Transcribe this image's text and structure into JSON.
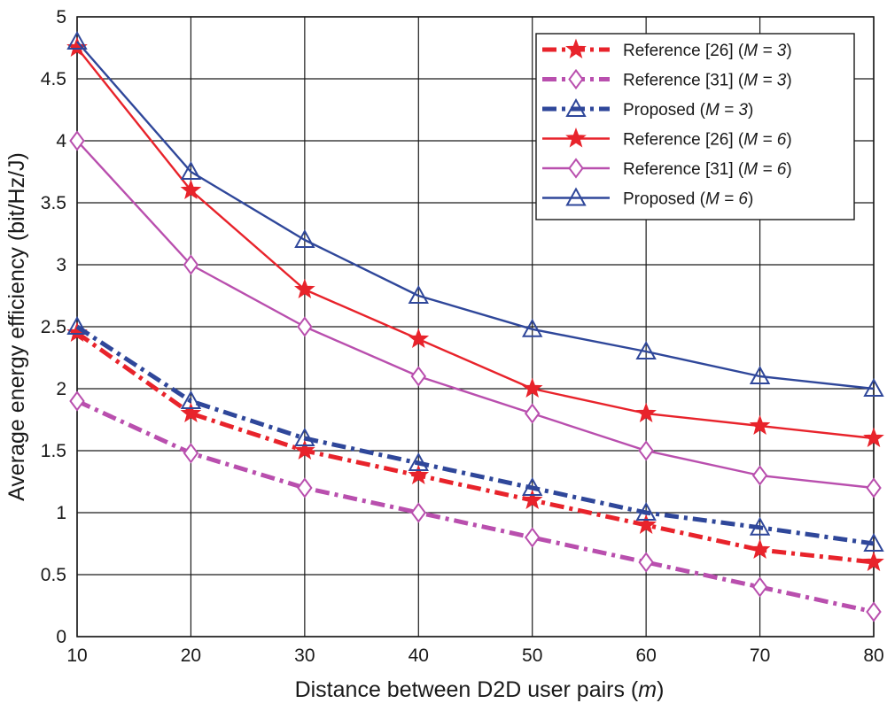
{
  "chart_data": {
    "type": "line",
    "title": "",
    "xlabel_main": "Distance between D2D user pairs (",
    "xlabel_unit": "m",
    "xlabel_close": ")",
    "ylabel": "Average energy efficiency (bit/Hz/J)",
    "xlim": [
      10,
      80
    ],
    "ylim": [
      0,
      5
    ],
    "grid": true,
    "legend_position": "top-right",
    "x": [
      10,
      20,
      30,
      40,
      50,
      60,
      70,
      80
    ],
    "x_tick_labels": [
      "10",
      "20",
      "30",
      "40",
      "50",
      "60",
      "70",
      "80"
    ],
    "y_ticks": [
      0,
      0.5,
      1,
      1.5,
      2,
      2.5,
      3,
      3.5,
      4,
      4.5,
      5
    ],
    "y_tick_labels": [
      "0",
      "0.5",
      "1",
      "1.5",
      "2",
      "2.5",
      "3",
      "3.5",
      "4",
      "4.5",
      "5"
    ],
    "series": [
      {
        "id": "ref26-m3",
        "name": "Reference [26] (M = 3)",
        "legend_main": "Reference [26] (",
        "legend_param": "M = 3",
        "legend_close": ")",
        "color": "#e8232b",
        "line_style": "dashdot",
        "marker": "star",
        "values": [
          2.45,
          1.8,
          1.5,
          1.3,
          1.1,
          0.9,
          0.7,
          0.6
        ]
      },
      {
        "id": "ref31-m3",
        "name": "Reference [31] (M = 3)",
        "legend_main": "Reference [31] (",
        "legend_param": "M = 3",
        "legend_close": ")",
        "color": "#b94fae",
        "line_style": "dashdot",
        "marker": "diamond",
        "values": [
          1.9,
          1.48,
          1.2,
          1.0,
          0.8,
          0.6,
          0.4,
          0.2
        ]
      },
      {
        "id": "proposed-m3",
        "name": "Proposed (M = 3)",
        "legend_main": "Proposed (",
        "legend_param": "M = 3",
        "legend_close": ")",
        "color": "#2f479a",
        "line_style": "dashdot",
        "marker": "triangle",
        "values": [
          2.5,
          1.9,
          1.6,
          1.4,
          1.2,
          1.0,
          0.88,
          0.75
        ]
      },
      {
        "id": "ref26-m6",
        "name": "Reference [26] (M = 6)",
        "legend_main": "Reference [26] (",
        "legend_param": "M = 6",
        "legend_close": ")",
        "color": "#e8232b",
        "line_style": "solid",
        "marker": "star",
        "values": [
          4.75,
          3.6,
          2.8,
          2.4,
          2.0,
          1.8,
          1.7,
          1.6
        ]
      },
      {
        "id": "ref31-m6",
        "name": "Reference [31] (M = 6)",
        "legend_main": "Reference [31] (",
        "legend_param": "M = 6",
        "legend_close": ")",
        "color": "#b94fae",
        "line_style": "solid",
        "marker": "diamond",
        "values": [
          4.0,
          3.0,
          2.5,
          2.1,
          1.8,
          1.5,
          1.3,
          1.2
        ]
      },
      {
        "id": "proposed-m6",
        "name": "Proposed (M = 6)",
        "legend_main": "Proposed (",
        "legend_param": "M = 6",
        "legend_close": ")",
        "color": "#2f479a",
        "line_style": "solid",
        "marker": "triangle",
        "values": [
          4.8,
          3.75,
          3.2,
          2.75,
          2.48,
          2.3,
          2.1,
          2.0
        ]
      }
    ]
  }
}
